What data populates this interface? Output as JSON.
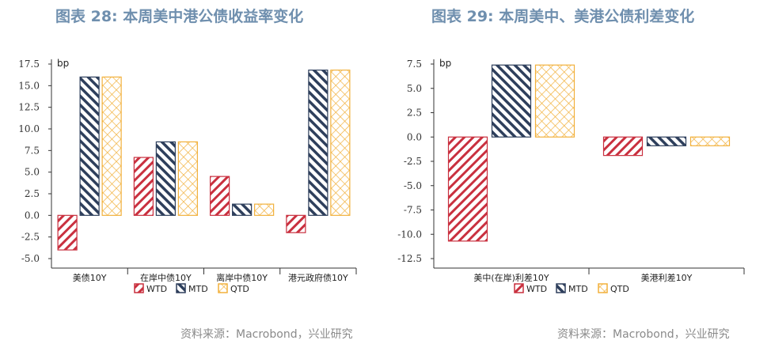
{
  "titles": {
    "left": "图表 28: 本周美中港公债收益率变化",
    "right": "图表 29: 本周美中、美港公债利差变化"
  },
  "source": {
    "left": "资料来源：Macrobond，兴业研究",
    "right": "资料来源：Macrobond，兴业研究"
  },
  "colors": {
    "WTD": "#c9303f",
    "MTD": "#2e3f5c",
    "QTD": "#f2b13c"
  },
  "chart_data": [
    {
      "type": "bar",
      "title": "图表 28: 本周美中港公债收益率变化",
      "ylabel": "bp",
      "ylim": [
        -5.0,
        17.5
      ],
      "yticks": [
        -5.0,
        -2.5,
        0.0,
        2.5,
        5.0,
        7.5,
        10.0,
        12.5,
        15.0,
        17.5
      ],
      "categories": [
        "美债10Y",
        "在岸中债10Y",
        "离岸中债10Y",
        "港元政府债10Y"
      ],
      "series": [
        {
          "name": "WTD",
          "values": [
            -4.0,
            6.7,
            4.5,
            -2.0
          ]
        },
        {
          "name": "MTD",
          "values": [
            16.0,
            8.5,
            1.3,
            16.8
          ]
        },
        {
          "name": "QTD",
          "values": [
            16.0,
            8.5,
            1.3,
            16.8
          ]
        }
      ],
      "legend": "bottom"
    },
    {
      "type": "bar",
      "title": "图表 29: 本周美中、美港公债利差变化",
      "ylabel": "bp",
      "ylim": [
        -12.5,
        7.5
      ],
      "yticks": [
        -12.5,
        -10.0,
        -7.5,
        -5.0,
        -2.5,
        0.0,
        2.5,
        5.0,
        7.5
      ],
      "categories": [
        "美中(在岸)利差10Y",
        "美港利差10Y"
      ],
      "series": [
        {
          "name": "WTD",
          "values": [
            -10.7,
            -1.9
          ]
        },
        {
          "name": "MTD",
          "values": [
            7.4,
            -0.9
          ]
        },
        {
          "name": "QTD",
          "values": [
            7.4,
            -0.9
          ]
        }
      ],
      "legend": "bottom"
    }
  ]
}
